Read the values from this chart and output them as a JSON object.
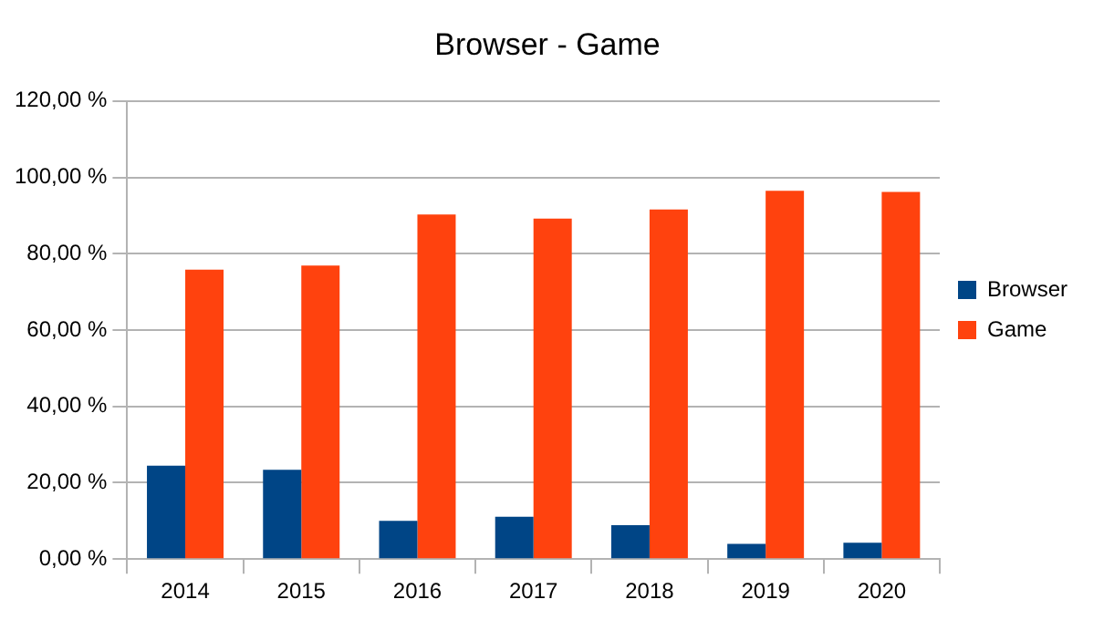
{
  "chart_data": {
    "type": "bar",
    "title": "Browser - Game",
    "categories": [
      "2014",
      "2015",
      "2016",
      "2017",
      "2018",
      "2019",
      "2020"
    ],
    "series": [
      {
        "name": "Browser",
        "color": "#004586",
        "values": [
          24.5,
          23.4,
          10.0,
          11.1,
          8.9,
          4.0,
          4.3
        ]
      },
      {
        "name": "Game",
        "color": "#ff420e",
        "values": [
          75.8,
          76.9,
          90.3,
          89.2,
          91.6,
          96.5,
          96.2
        ]
      }
    ],
    "ylim": [
      0,
      120
    ],
    "yticks": [
      {
        "value": 0,
        "label": "0,00 %"
      },
      {
        "value": 20,
        "label": "20,00 %"
      },
      {
        "value": 40,
        "label": "40,00 %"
      },
      {
        "value": 60,
        "label": "60,00 %"
      },
      {
        "value": 80,
        "label": "80,00 %"
      },
      {
        "value": 100,
        "label": "100,00 %"
      },
      {
        "value": 120,
        "label": "120,00 %"
      }
    ],
    "grid": "y",
    "legend": "right"
  }
}
